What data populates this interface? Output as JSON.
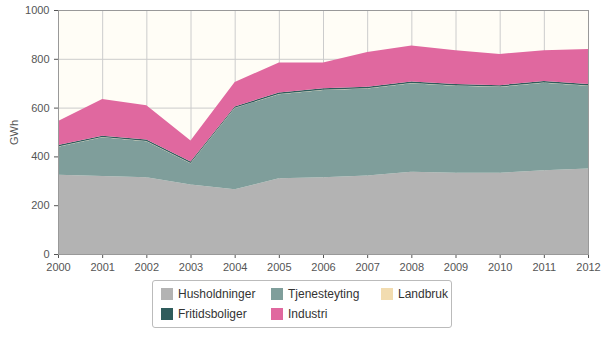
{
  "chart_data": {
    "type": "area",
    "stacked": true,
    "grid": true,
    "legend": "bottom",
    "y_label": "GWh",
    "x": [
      2000,
      2001,
      2002,
      2003,
      2004,
      2005,
      2006,
      2007,
      2008,
      2009,
      2010,
      2011,
      2012
    ],
    "xlim": [
      2000,
      2012
    ],
    "xticks": [
      2000,
      2001,
      2002,
      2003,
      2004,
      2005,
      2006,
      2007,
      2008,
      2009,
      2010,
      2011,
      2012
    ],
    "ylim": [
      0,
      1000
    ],
    "yticks": [
      0,
      200,
      400,
      600,
      800,
      1000
    ],
    "series": [
      {
        "name": "Husholdninger",
        "color": "#b3b3b3",
        "values": [
          325,
          320,
          315,
          285,
          265,
          310,
          315,
          322,
          337,
          333,
          333,
          343,
          350
        ]
      },
      {
        "name": "Tjenesteyting",
        "color": "#7f9e9b",
        "values": [
          115,
          158,
          147,
          87,
          333,
          345,
          357,
          356,
          363,
          357,
          352,
          359,
          340
        ]
      },
      {
        "name": "Landbruk",
        "color": "#f2dcb0",
        "values": [
          1,
          1,
          1,
          1,
          1,
          1,
          1,
          1,
          1,
          1,
          1,
          1,
          1
        ]
      },
      {
        "name": "Fritidsboliger",
        "color": "#2f5c5c",
        "values": [
          6,
          6,
          6,
          6,
          6,
          6,
          6,
          6,
          6,
          6,
          6,
          6,
          6
        ]
      },
      {
        "name": "Industri",
        "color": "#e0689f",
        "values": [
          98,
          150,
          141,
          86,
          100,
          123,
          106,
          143,
          148,
          138,
          128,
          126,
          143
        ]
      }
    ]
  }
}
